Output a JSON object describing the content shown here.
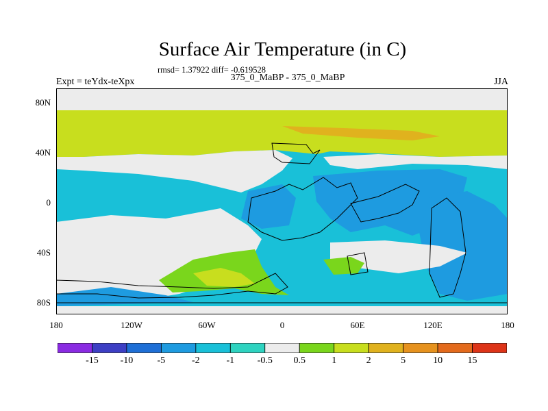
{
  "header": {
    "title": "Surface Air Temperature (in C)",
    "stats": "rmsd= 1.37922 diff= -0.619528",
    "experiment": "Expt = teYdx-teXpx",
    "comparison": "375_0_MaBP - 375_0_MaBP",
    "season": "JJA"
  },
  "axes": {
    "lat_labels": [
      "80N",
      "40N",
      "0",
      "40S",
      "80S"
    ],
    "lon_labels": [
      "180",
      "120W",
      "60W",
      "0",
      "60E",
      "120E",
      "180"
    ]
  },
  "colorbar": {
    "labels": [
      "-15",
      "-10",
      "-5",
      "-2",
      "-1",
      "-0.5",
      "0.5",
      "1",
      "2",
      "5",
      "10",
      "15"
    ],
    "colors": [
      "#8a2be2",
      "#3d3fc4",
      "#1f6fd6",
      "#1e9be0",
      "#19c0d8",
      "#2ed3c0",
      "#ececec",
      "#7ad61c",
      "#c8de1e",
      "#e0b21e",
      "#e6921e",
      "#e36a1c",
      "#dd3418"
    ]
  }
}
